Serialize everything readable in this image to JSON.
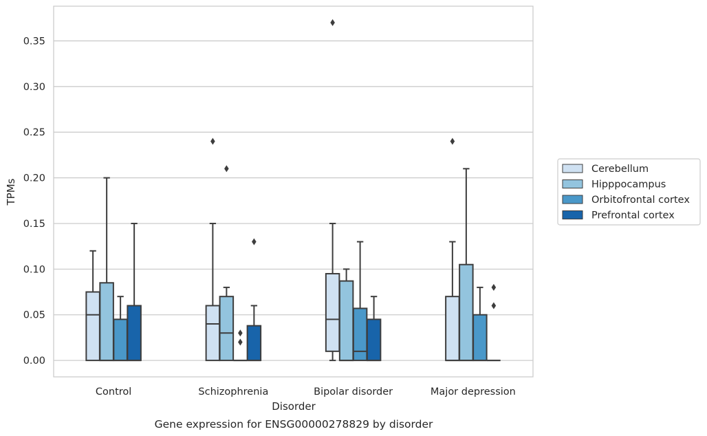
{
  "chart_data": {
    "type": "box",
    "xlabel": "Disorder",
    "ylabel": "TPMs",
    "caption": "Gene expression for ENSG00000278829 by disorder",
    "categories": [
      "Control",
      "Schizophrenia",
      "Bipolar disorder",
      "Major depression"
    ],
    "ylim": [
      -0.018,
      0.388
    ],
    "yticks": [
      0.0,
      0.05,
      0.1,
      0.15,
      0.2,
      0.25,
      0.3,
      0.35
    ],
    "ytick_labels": [
      "0.00",
      "0.05",
      "0.10",
      "0.15",
      "0.20",
      "0.25",
      "0.30",
      "0.35"
    ],
    "grid": true,
    "legend_position": "right",
    "series": [
      {
        "name": "Cerebellum",
        "color": "#cfe1f2",
        "boxes": [
          {
            "whisker_low": 0.0,
            "q1": 0.0,
            "median": 0.05,
            "q3": 0.075,
            "whisker_high": 0.12,
            "outliers": []
          },
          {
            "whisker_low": 0.0,
            "q1": 0.0,
            "median": 0.04,
            "q3": 0.06,
            "whisker_high": 0.15,
            "outliers": [
              0.24
            ]
          },
          {
            "whisker_low": 0.0,
            "q1": 0.01,
            "median": 0.045,
            "q3": 0.095,
            "whisker_high": 0.15,
            "outliers": [
              0.37
            ]
          },
          {
            "whisker_low": 0.0,
            "q1": 0.0,
            "median": 0.0,
            "q3": 0.07,
            "whisker_high": 0.13,
            "outliers": [
              0.24
            ]
          }
        ]
      },
      {
        "name": "Hipppocampus",
        "color": "#93c4de",
        "boxes": [
          {
            "whisker_low": 0.0,
            "q1": 0.0,
            "median": 0.0,
            "q3": 0.085,
            "whisker_high": 0.2,
            "outliers": []
          },
          {
            "whisker_low": 0.0,
            "q1": 0.0,
            "median": 0.03,
            "q3": 0.07,
            "whisker_high": 0.08,
            "outliers": [
              0.21
            ]
          },
          {
            "whisker_low": 0.0,
            "q1": 0.0,
            "median": 0.0,
            "q3": 0.087,
            "whisker_high": 0.1,
            "outliers": []
          },
          {
            "whisker_low": 0.0,
            "q1": 0.0,
            "median": 0.0,
            "q3": 0.105,
            "whisker_high": 0.21,
            "outliers": []
          }
        ]
      },
      {
        "name": "Orbitofrontal cortex",
        "color": "#4a98c9",
        "boxes": [
          {
            "whisker_low": 0.0,
            "q1": 0.0,
            "median": 0.0,
            "q3": 0.045,
            "whisker_high": 0.07,
            "outliers": []
          },
          {
            "whisker_low": 0.0,
            "q1": 0.0,
            "median": 0.0,
            "q3": 0.0,
            "whisker_high": 0.0,
            "outliers": [
              0.02,
              0.03
            ]
          },
          {
            "whisker_low": 0.0,
            "q1": 0.0,
            "median": 0.01,
            "q3": 0.057,
            "whisker_high": 0.13,
            "outliers": []
          },
          {
            "whisker_low": 0.0,
            "q1": 0.0,
            "median": 0.0,
            "q3": 0.05,
            "whisker_high": 0.08,
            "outliers": []
          }
        ]
      },
      {
        "name": "Prefrontal cortex",
        "color": "#1864aa",
        "boxes": [
          {
            "whisker_low": 0.0,
            "q1": 0.0,
            "median": 0.0,
            "q3": 0.06,
            "whisker_high": 0.15,
            "outliers": []
          },
          {
            "whisker_low": 0.0,
            "q1": 0.0,
            "median": 0.0,
            "q3": 0.038,
            "whisker_high": 0.06,
            "outliers": [
              0.13
            ]
          },
          {
            "whisker_low": 0.0,
            "q1": 0.0,
            "median": 0.0,
            "q3": 0.045,
            "whisker_high": 0.07,
            "outliers": []
          },
          {
            "whisker_low": 0.0,
            "q1": 0.0,
            "median": 0.0,
            "q3": 0.0,
            "whisker_high": 0.0,
            "outliers": [
              0.06,
              0.08
            ]
          }
        ]
      }
    ]
  }
}
